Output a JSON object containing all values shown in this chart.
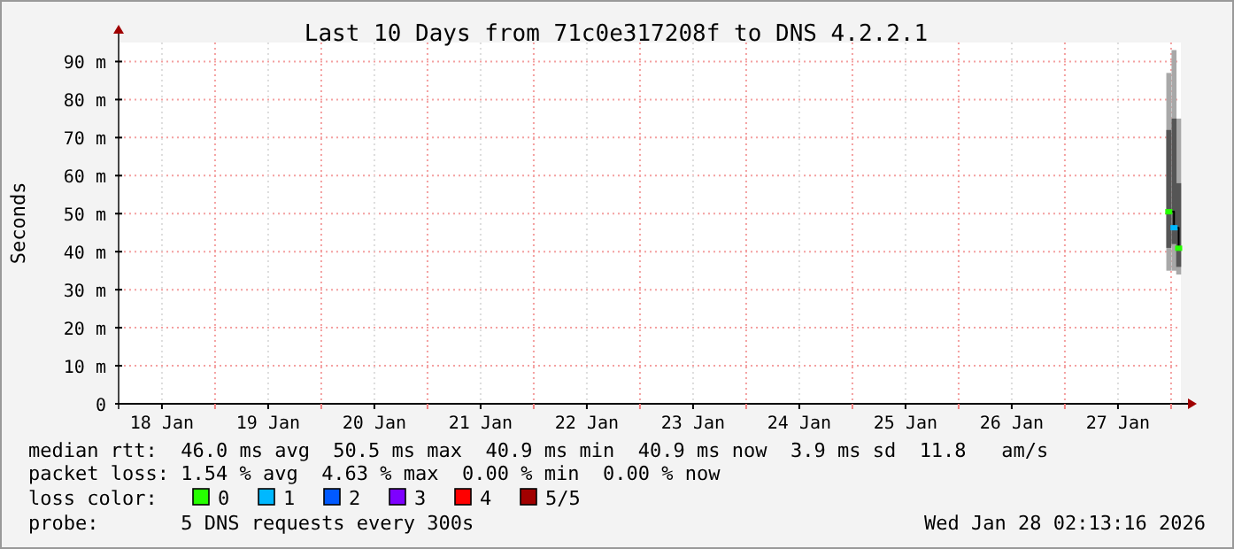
{
  "chart_data": {
    "type": "scatter",
    "title": "Last 10 Days from 71c0e317208f to DNS 4.2.2.1",
    "ylabel": "Seconds",
    "xlim": [
      "2026-01-18T02:13",
      "2026-01-28T02:13"
    ],
    "xticks": [
      {
        "value": "2026-01-18T12:00",
        "label": "18 Jan"
      },
      {
        "value": "2026-01-19T00:00",
        "label": null
      },
      {
        "value": "2026-01-19T12:00",
        "label": "19 Jan"
      },
      {
        "value": "2026-01-20T00:00",
        "label": null
      },
      {
        "value": "2026-01-20T12:00",
        "label": "20 Jan"
      },
      {
        "value": "2026-01-21T00:00",
        "label": null
      },
      {
        "value": "2026-01-21T12:00",
        "label": "21 Jan"
      },
      {
        "value": "2026-01-22T00:00",
        "label": null
      },
      {
        "value": "2026-01-22T12:00",
        "label": "22 Jan"
      },
      {
        "value": "2026-01-23T00:00",
        "label": null
      },
      {
        "value": "2026-01-23T12:00",
        "label": "23 Jan"
      },
      {
        "value": "2026-01-24T00:00",
        "label": null
      },
      {
        "value": "2026-01-24T12:00",
        "label": "24 Jan"
      },
      {
        "value": "2026-01-25T00:00",
        "label": null
      },
      {
        "value": "2026-01-25T12:00",
        "label": "25 Jan"
      },
      {
        "value": "2026-01-26T00:00",
        "label": null
      },
      {
        "value": "2026-01-26T12:00",
        "label": "26 Jan"
      },
      {
        "value": "2026-01-27T00:00",
        "label": null
      },
      {
        "value": "2026-01-27T12:00",
        "label": "27 Jan"
      },
      {
        "value": "2026-01-28T00:00",
        "label": null
      }
    ],
    "ylim": [
      0,
      95
    ],
    "yticks": [
      0,
      {
        "value": 10,
        "label": "10 m"
      },
      {
        "value": 20,
        "label": "20 m"
      },
      {
        "value": 30,
        "label": "30 m"
      },
      {
        "value": 40,
        "label": "40 m"
      },
      {
        "value": 50,
        "label": "50 m"
      },
      {
        "value": 60,
        "label": "60 m"
      },
      {
        "value": 70,
        "label": "70 m"
      },
      {
        "value": 80,
        "label": "80 m"
      },
      {
        "value": 90,
        "label": "90 m"
      }
    ],
    "grid": true,
    "legend": "bottom",
    "legend_title": "loss color:",
    "marker": "square",
    "x": [
      "2026-01-27T23:29",
      "2026-01-28T00:40",
      "2026-01-28T01:43"
    ],
    "series": [
      {
        "type": "bar",
        "color": "#a8a8a8",
        "base": [
          35,
          35,
          34
        ],
        "values": [
          52,
          58,
          41
        ]
      },
      {
        "type": "bar",
        "color": "#555555",
        "base": [
          41,
          42,
          36
        ],
        "values": [
          31,
          33,
          22
        ]
      },
      {
        "type": "step",
        "color": "#000000",
        "marker": "none",
        "values": [
          50.5,
          46.3,
          40.9
        ]
      },
      {
        "name": "0",
        "color": "#26ff00",
        "values": [
          50.5,
          null,
          40.9
        ]
      },
      {
        "name": "1",
        "color": "#00b8ff",
        "values": [
          null,
          46.3,
          null
        ]
      },
      {
        "name": "2",
        "color": "#0059ff",
        "values": [
          null,
          null,
          null
        ]
      },
      {
        "name": "3",
        "color": "#7e00ff",
        "values": [
          null,
          null,
          null
        ]
      },
      {
        "name": "4",
        "color": "#ff0000",
        "values": [
          null,
          null,
          null
        ]
      },
      {
        "name": "5/5",
        "color": "#a10000",
        "values": [
          null,
          null,
          null
        ]
      }
    ],
    "annotations": [
      "median rtt:  46.0 ms avg  50.5 ms max  40.9 ms min  40.9 ms now  3.9 ms sd  11.8   am/s",
      "packet loss: 1.54 % avg  4.63 % max  0.00 % min  0.00 % now",
      "probe:       5 DNS requests every 300s",
      "Wed Jan 28 02:13:16 2026"
    ]
  }
}
